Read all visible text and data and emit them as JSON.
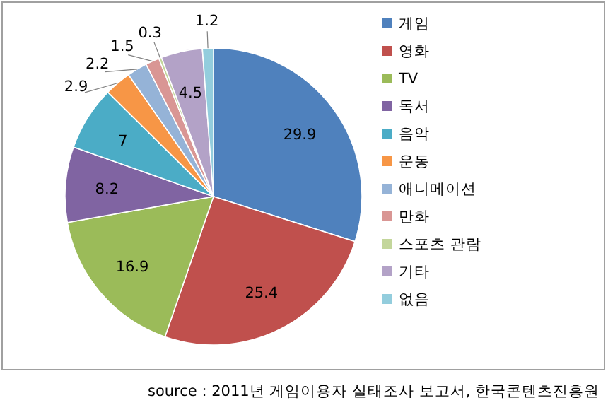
{
  "chart_data": {
    "type": "pie",
    "categories": [
      "게임",
      "영화",
      "TV",
      "독서",
      "음악",
      "운동",
      "애니메이션",
      "만화",
      "스포츠 관람",
      "기타",
      "없음"
    ],
    "values": [
      29.9,
      25.4,
      16.9,
      8.2,
      7,
      2.9,
      2.2,
      1.5,
      0.3,
      4.5,
      1.2
    ],
    "colors": [
      "#4f81bd",
      "#c0504d",
      "#9bbb59",
      "#8064a2",
      "#4bacc6",
      "#f79646",
      "#95b3d7",
      "#d99694",
      "#c3d69b",
      "#b3a2c7",
      "#93cddd"
    ],
    "data_labels": true,
    "legend": "right",
    "annotations": [
      "source : 2011년 게임이용자 실태조사 보고서, 한국콘텐츠진흥원"
    ]
  }
}
